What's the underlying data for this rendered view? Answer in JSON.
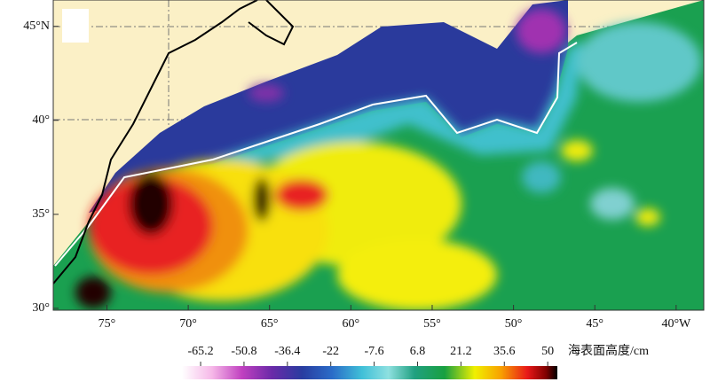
{
  "map": {
    "lonlim": [
      78.3,
      38.3
    ],
    "latlim": [
      29.9,
      46.4
    ],
    "lat_ticks": [
      {
        "value": 45,
        "label": "45°N"
      },
      {
        "value": 40,
        "label": "40°"
      },
      {
        "value": 35,
        "label": "35°"
      },
      {
        "value": 30,
        "label": "30°"
      }
    ],
    "lon_ticks": [
      {
        "value": 75,
        "label": "75°"
      },
      {
        "value": 70,
        "label": "70°"
      },
      {
        "value": 65,
        "label": "65°"
      },
      {
        "value": 60,
        "label": "60°"
      },
      {
        "value": 55,
        "label": "55°"
      },
      {
        "value": 50,
        "label": "50°"
      },
      {
        "value": 45,
        "label": "45°"
      },
      {
        "value": 40,
        "label": "40°W"
      }
    ],
    "colorbar": {
      "title": "海表面高度/cm",
      "clim": [
        -71.4,
        53.2
      ],
      "ticks": [
        -65.2,
        -50.8,
        -36.4,
        -22,
        -7.6,
        6.8,
        21.2,
        35.6,
        50
      ]
    }
  }
}
